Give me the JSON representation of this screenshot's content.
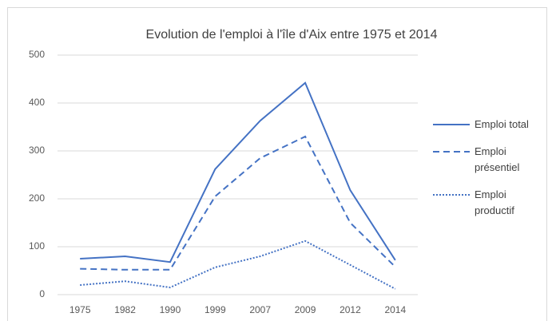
{
  "chart_data": {
    "type": "line",
    "title": "Evolution de l'emploi  à l'île d'Aix entre 1975 et 2014",
    "categories": [
      "1975",
      "1982",
      "1990",
      "1999",
      "2007",
      "2009",
      "2012",
      "2014"
    ],
    "series": [
      {
        "name": "Emploi total",
        "color": "#4472c4",
        "style": "solid",
        "values": [
          75,
          80,
          68,
          262,
          363,
          442,
          218,
          72
        ]
      },
      {
        "name": "Emploi présentiel",
        "color": "#4472c4",
        "style": "dashed",
        "values": [
          54,
          52,
          52,
          205,
          285,
          330,
          150,
          58
        ]
      },
      {
        "name": "Emploi productif",
        "color": "#4472c4",
        "style": "dotted",
        "values": [
          20,
          28,
          15,
          57,
          80,
          112,
          62,
          12
        ]
      }
    ],
    "ylim": [
      0,
      500
    ],
    "yticks": [
      0,
      100,
      200,
      300,
      400,
      500
    ],
    "grid": true,
    "legend": "right"
  }
}
